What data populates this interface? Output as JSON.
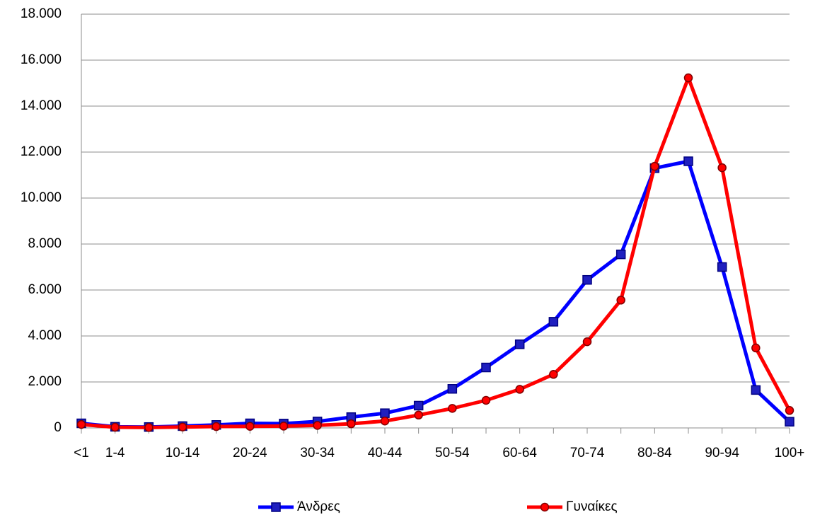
{
  "chart_data": {
    "type": "line",
    "categories": [
      "<1",
      "1-4",
      null,
      "10-14",
      null,
      "20-24",
      null,
      "30-34",
      null,
      "40-44",
      null,
      "50-54",
      null,
      "60-64",
      null,
      "70-74",
      null,
      "80-84",
      null,
      "90-94",
      null,
      "100+"
    ],
    "series": [
      {
        "name": "Άνδρες",
        "color": "#0000ff",
        "marker": "square",
        "values": [
          200,
          50,
          40,
          80,
          130,
          200,
          190,
          280,
          470,
          640,
          970,
          1700,
          2630,
          3640,
          4620,
          6440,
          7550,
          11300,
          11600,
          7000,
          1650,
          270
        ]
      },
      {
        "name": "Γυναίκες",
        "color": "#ff0000",
        "marker": "circle",
        "values": [
          150,
          30,
          20,
          40,
          60,
          70,
          80,
          110,
          180,
          300,
          560,
          850,
          1200,
          1680,
          2330,
          3750,
          5560,
          11380,
          15230,
          11320,
          3480,
          760
        ]
      }
    ],
    "ylim": [
      0,
      18000
    ],
    "yticks": [
      0,
      {
        "value": 2000,
        "label": "2.000"
      },
      {
        "value": 4000,
        "label": "4.000"
      },
      {
        "value": 6000,
        "label": "6.000"
      },
      {
        "value": 8000,
        "label": "8.000"
      },
      {
        "value": 10000,
        "label": "10.000"
      },
      {
        "value": 12000,
        "label": "12.000"
      },
      {
        "value": 14000,
        "label": "14.000"
      },
      {
        "value": 16000,
        "label": "16.000"
      },
      {
        "value": 18000,
        "label": "18.000"
      }
    ],
    "grid": true,
    "legend": "bottom"
  }
}
